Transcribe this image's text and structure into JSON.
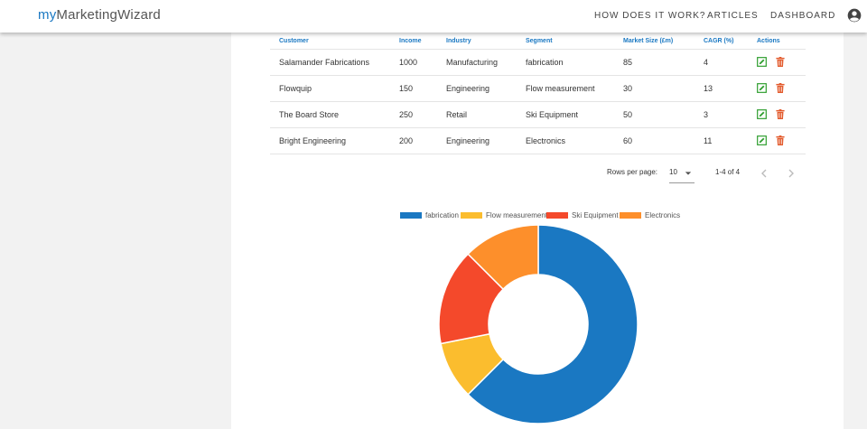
{
  "header": {
    "brand_prefix": "my",
    "brand_rest": "MarketingWizard",
    "nav": [
      "HOW DOES IT WORK?",
      "ARTICLES",
      "DASHBOARD"
    ]
  },
  "table": {
    "columns": [
      "Customer",
      "Income",
      "Industry",
      "Segment",
      "Market Size (£m)",
      "CAGR (%)",
      "Actions"
    ],
    "rows": [
      [
        "Salamander Fabrications",
        "1000",
        "Manufacturing",
        "fabrication",
        "85",
        "4"
      ],
      [
        "Flowquip",
        "150",
        "Engineering",
        "Flow measurement",
        "30",
        "13"
      ],
      [
        "The Board Store",
        "250",
        "Retail",
        "Ski Equipment",
        "50",
        "3"
      ],
      [
        "Bright Engineering",
        "200",
        "Engineering",
        "Electronics",
        "60",
        "11"
      ]
    ]
  },
  "pagination": {
    "rows_per_page_label": "Rows per page:",
    "rows_per_page_value": "10",
    "range_label": "1-4 of 4"
  },
  "chart_data": {
    "type": "pie",
    "variant": "doughnut",
    "categories": [
      "fabrication",
      "Flow measurement",
      "Ski Equipment",
      "Electronics"
    ],
    "values": [
      1000,
      150,
      250,
      200
    ],
    "colors": [
      "#1a78c2",
      "#fbbd2e",
      "#f4492b",
      "#fd8f2b"
    ],
    "legend": "top"
  },
  "colors": {
    "accent": "#1a78c2",
    "edit_icon": "#2e9e2e",
    "delete_icon": "#e35b2d"
  },
  "icons": {
    "edit": "edit-icon",
    "delete": "trash-icon",
    "account": "account-circle-icon"
  }
}
